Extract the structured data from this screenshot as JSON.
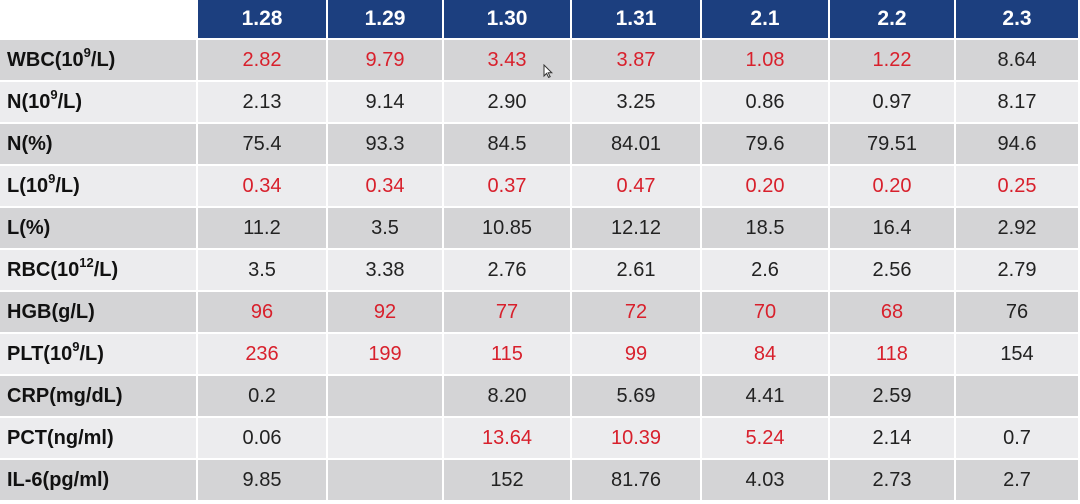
{
  "table": {
    "columns": [
      "1.28",
      "1.29",
      "1.30",
      "1.31",
      "2.1",
      "2.2",
      "2.3"
    ],
    "rows": [
      {
        "label": "WBC(10",
        "sup": "9",
        "tail": "/L)",
        "values": [
          "2.82",
          "9.79",
          "3.43",
          "3.87",
          "1.08",
          "1.22",
          "8.64"
        ],
        "abnormal": [
          true,
          true,
          true,
          true,
          true,
          true,
          false
        ]
      },
      {
        "label": "N(10",
        "sup": "9",
        "tail": "/L)",
        "values": [
          "2.13",
          "9.14",
          "2.90",
          "3.25",
          "0.86",
          "0.97",
          "8.17"
        ],
        "abnormal": [
          false,
          false,
          false,
          false,
          false,
          false,
          false
        ]
      },
      {
        "label": "N(%)",
        "sup": "",
        "tail": "",
        "values": [
          "75.4",
          "93.3",
          "84.5",
          "84.01",
          "79.6",
          "79.51",
          "94.6"
        ],
        "abnormal": [
          false,
          false,
          false,
          false,
          false,
          false,
          false
        ]
      },
      {
        "label": "L(10",
        "sup": "9",
        "tail": "/L)",
        "values": [
          "0.34",
          "0.34",
          "0.37",
          "0.47",
          "0.20",
          "0.20",
          "0.25"
        ],
        "abnormal": [
          true,
          true,
          true,
          true,
          true,
          true,
          true
        ]
      },
      {
        "label": "L(%)",
        "sup": "",
        "tail": "",
        "values": [
          "11.2",
          "3.5",
          "10.85",
          "12.12",
          "18.5",
          "16.4",
          "2.92"
        ],
        "abnormal": [
          false,
          false,
          false,
          false,
          false,
          false,
          false
        ]
      },
      {
        "label": "RBC(10",
        "sup": "12",
        "tail": "/L)",
        "values": [
          "3.5",
          "3.38",
          "2.76",
          "2.61",
          "2.6",
          "2.56",
          "2.79"
        ],
        "abnormal": [
          false,
          false,
          false,
          false,
          false,
          false,
          false
        ]
      },
      {
        "label": "HGB(g/L)",
        "sup": "",
        "tail": "",
        "values": [
          "96",
          "92",
          "77",
          "72",
          "70",
          "68",
          "76"
        ],
        "abnormal": [
          true,
          true,
          true,
          true,
          true,
          true,
          false
        ]
      },
      {
        "label": "PLT(10",
        "sup": "9",
        "tail": "/L)",
        "values": [
          "236",
          "199",
          "115",
          "99",
          "84",
          "118",
          "154"
        ],
        "abnormal": [
          true,
          true,
          true,
          true,
          true,
          true,
          false
        ]
      },
      {
        "label": "CRP(mg/dL)",
        "sup": "",
        "tail": "",
        "values": [
          "0.2",
          "",
          "8.20",
          "5.69",
          "4.41",
          "2.59",
          ""
        ],
        "abnormal": [
          false,
          false,
          false,
          false,
          false,
          false,
          false
        ]
      },
      {
        "label": "PCT(ng/ml)",
        "sup": "",
        "tail": "",
        "values": [
          "0.06",
          "",
          "13.64",
          "10.39",
          "5.24",
          "2.14",
          "0.7"
        ],
        "abnormal": [
          false,
          false,
          true,
          true,
          true,
          false,
          false
        ]
      },
      {
        "label": "IL-6(pg/ml)",
        "sup": "",
        "tail": "",
        "values": [
          "9.85",
          "",
          "152",
          "81.76",
          "4.03",
          "2.73",
          "2.7"
        ],
        "abnormal": [
          false,
          false,
          false,
          false,
          false,
          false,
          false
        ]
      }
    ]
  },
  "colors": {
    "header_bg": "#1c3f7f",
    "row_dark": "#d4d4d6",
    "row_light": "#ececee",
    "abnormal_text": "#d8202c"
  },
  "icons": {
    "cursor": "mouse-pointer-icon"
  }
}
